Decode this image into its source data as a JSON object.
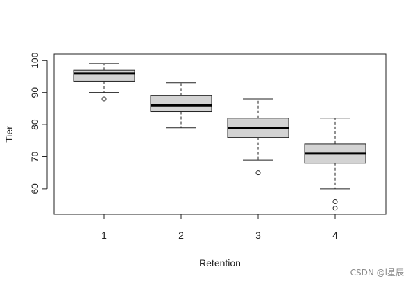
{
  "chart_data": {
    "type": "boxplot",
    "xlabel": "Retention",
    "ylabel": "Tier",
    "categories": [
      "1",
      "2",
      "3",
      "4"
    ],
    "yticks": [
      "60",
      "70",
      "80",
      "90",
      "100"
    ],
    "ylim": [
      52,
      102
    ],
    "box_fill": "#d3d3d3",
    "boxes": [
      {
        "category": "1",
        "whisker_low": 90,
        "q1": 93.5,
        "median": 96,
        "q3": 97,
        "whisker_high": 99,
        "outliers": [
          88
        ]
      },
      {
        "category": "2",
        "whisker_low": 79,
        "q1": 84,
        "median": 86,
        "q3": 89,
        "whisker_high": 93,
        "outliers": []
      },
      {
        "category": "3",
        "whisker_low": 69,
        "q1": 76,
        "median": 79,
        "q3": 82,
        "whisker_high": 88,
        "outliers": [
          65
        ]
      },
      {
        "category": "4",
        "whisker_low": 60,
        "q1": 68,
        "median": 71,
        "q3": 74,
        "whisker_high": 82,
        "outliers": [
          56,
          54
        ]
      }
    ],
    "grid": false
  },
  "watermark": "CSDN @l星辰"
}
